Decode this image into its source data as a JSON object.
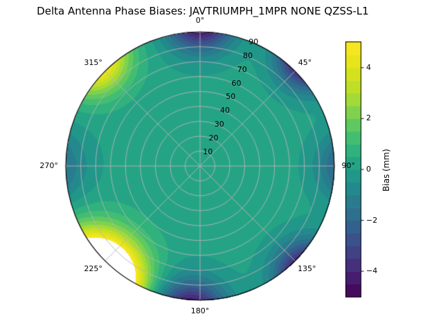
{
  "title": "Delta Antenna Phase Biases: JAVTRIUMPH_1MPR NONE QZSS-L1",
  "chart_data": {
    "type": "heatmap",
    "subtype": "polar_filled_contour",
    "title": "Delta Antenna Phase Biases: JAVTRIUMPH_1MPR NONE QZSS-L1",
    "angular_ticks": [
      "0°",
      "45°",
      "90°",
      "135°",
      "180°",
      "225°",
      "270°",
      "315°"
    ],
    "angular_tick_values": [
      0,
      45,
      90,
      135,
      180,
      225,
      270,
      315
    ],
    "radial_ticks": [
      "10",
      "20",
      "30",
      "40",
      "50",
      "60",
      "70",
      "80",
      "90"
    ],
    "radial_tick_values": [
      10,
      20,
      30,
      40,
      50,
      60,
      70,
      80,
      90
    ],
    "radial_range": [
      0,
      90
    ],
    "radial_label_angle_deg": 22.5,
    "grid": true,
    "grid_color": "#b5b5b5",
    "levels": {
      "min": -5,
      "max": 5,
      "step": 0.5
    },
    "over_color": "#ffffff",
    "background_bias_mm": 0.2,
    "field_model_blobs": [
      {
        "azimuth_deg": 0,
        "r": 103,
        "amplitude_mm": -6.5,
        "sigma": 16
      },
      {
        "azimuth_deg": 45,
        "r": 103,
        "amplitude_mm": -6.0,
        "sigma": 14
      },
      {
        "azimuth_deg": 90,
        "r": 104,
        "amplitude_mm": -3.5,
        "sigma": 16
      },
      {
        "azimuth_deg": 135,
        "r": 103,
        "amplitude_mm": -6.0,
        "sigma": 15
      },
      {
        "azimuth_deg": 184,
        "r": 104,
        "amplitude_mm": -6.5,
        "sigma": 17
      },
      {
        "azimuth_deg": 223,
        "r": 104,
        "amplitude_mm": 13.0,
        "sigma": 20
      },
      {
        "azimuth_deg": 270,
        "r": 105,
        "amplitude_mm": -2.5,
        "sigma": 18
      },
      {
        "azimuth_deg": 315,
        "r": 103,
        "amplitude_mm": 6.0,
        "sigma": 16
      }
    ],
    "colormap_name": "viridis",
    "colormap": [
      "#440154",
      "#482878",
      "#3e4989",
      "#31688e",
      "#26828e",
      "#1f9e89",
      "#35b779",
      "#6dcd59",
      "#b4de2c",
      "#dfe318",
      "#fde725"
    ],
    "colorbar": {
      "label": "Bias (mm)",
      "range": [
        -5,
        5
      ],
      "ticks": [
        -4,
        -2,
        0,
        2,
        4
      ],
      "tick_labels": [
        "−4",
        "−2",
        "0",
        "2",
        "4"
      ],
      "side": "right"
    }
  }
}
